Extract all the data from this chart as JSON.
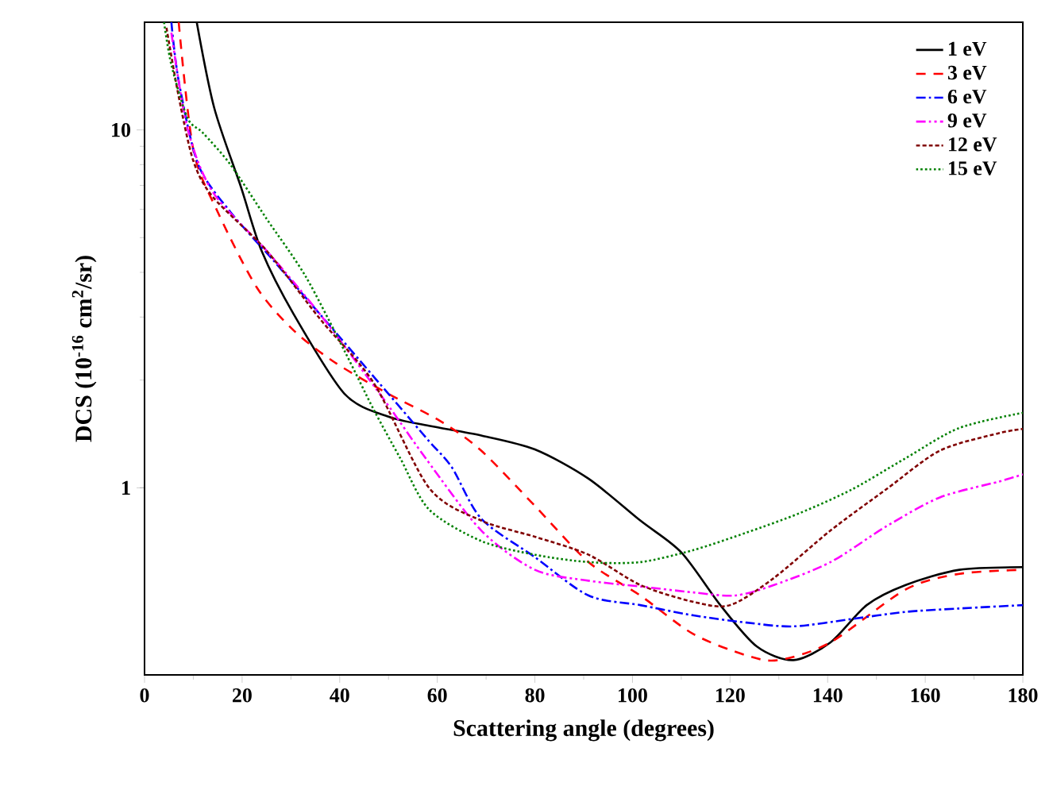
{
  "chart_data": {
    "type": "line",
    "xlabel": "Scattering angle (degrees)",
    "ylabel": "DCS (10$^{-16}$ cm$^{2}$/sr)",
    "xlim": [
      0,
      180
    ],
    "xticks": [
      0,
      20,
      40,
      60,
      80,
      100,
      120,
      140,
      160,
      180
    ],
    "ylim": [
      0.3,
      20
    ],
    "yticks": [
      1,
      10
    ],
    "log": "y",
    "grid": false,
    "legend": "top right",
    "series": [
      {
        "name": "1 eV",
        "color": "#000000",
        "line_style": "solid",
        "x": [
          10.7,
          14.3,
          19.8,
          24,
          30.6,
          41,
          50,
          58.3,
          69,
          80,
          91,
          101.6,
          110,
          118,
          125.5,
          133,
          140.6,
          148,
          156,
          167,
          180
        ],
        "values": [
          20,
          11.5,
          6.9,
          4.59,
          3.05,
          1.83,
          1.58,
          1.49,
          1.4,
          1.28,
          1.06,
          0.81,
          0.66,
          0.47,
          0.36,
          0.33,
          0.37,
          0.47,
          0.535,
          0.59,
          0.6
        ]
      },
      {
        "name": "3 eV",
        "color": "#ff0000",
        "line_style": "dashed",
        "x": [
          7,
          10,
          15,
          23,
          30.6,
          39,
          50,
          60.5,
          69,
          80,
          91,
          101.6,
          112.5,
          123.4,
          130,
          140.6,
          156,
          167,
          180
        ],
        "values": [
          20,
          8.8,
          5.9,
          3.63,
          2.75,
          2.24,
          1.83,
          1.54,
          1.27,
          0.89,
          0.62,
          0.5,
          0.39,
          0.34,
          0.33,
          0.37,
          0.52,
          0.575,
          0.59
        ]
      },
      {
        "name": "6 eV",
        "color": "#0000ff",
        "line_style": "dashdot",
        "x": [
          5.5,
          7,
          11,
          17.6,
          26.4,
          36,
          50,
          58.3,
          63,
          69,
          80,
          91,
          101.6,
          112.5,
          123.4,
          133,
          145,
          156,
          167,
          180
        ],
        "values": [
          20,
          13.7,
          8.0,
          5.9,
          4.32,
          3.05,
          1.83,
          1.35,
          1.14,
          0.82,
          0.64,
          0.5,
          0.47,
          0.44,
          0.42,
          0.41,
          0.43,
          0.45,
          0.46,
          0.47
        ]
      },
      {
        "name": "9 eV",
        "color": "#ff00ff",
        "line_style": "dashdotdot",
        "x": [
          5.5,
          8.8,
          14,
          25,
          36,
          49,
          57.6,
          69,
          80,
          91,
          101.6,
          112.5,
          121,
          129,
          140.6,
          152,
          163,
          175,
          180
        ],
        "values": [
          18.7,
          10.1,
          6.7,
          4.6,
          3.05,
          1.77,
          1.21,
          0.76,
          0.59,
          0.55,
          0.53,
          0.51,
          0.5,
          0.535,
          0.62,
          0.78,
          0.94,
          1.04,
          1.09
        ]
      },
      {
        "name": "12 eV",
        "color": "#800000",
        "line_style": "shortdashed",
        "x": [
          4.5,
          7,
          10,
          14,
          25,
          36,
          47,
          58.3,
          69,
          80,
          91,
          101.6,
          112.5,
          120,
          129,
          140.6,
          152,
          163,
          175,
          180
        ],
        "values": [
          19.3,
          12.4,
          8.2,
          6.5,
          4.6,
          2.96,
          1.96,
          1.0,
          0.81,
          0.73,
          0.65,
          0.535,
          0.48,
          0.47,
          0.56,
          0.76,
          0.99,
          1.27,
          1.42,
          1.46
        ]
      },
      {
        "name": "15 eV",
        "color": "#008000",
        "line_style": "dotted",
        "x": [
          4,
          5.5,
          8.8,
          12,
          17.6,
          25,
          33,
          41,
          47,
          52.4,
          58.3,
          69,
          80,
          91,
          101.6,
          112.5,
          123.4,
          134.3,
          145,
          156,
          167,
          180
        ],
        "values": [
          20,
          15.2,
          10.8,
          9.8,
          8.0,
          5.65,
          3.9,
          2.41,
          1.65,
          1.21,
          0.87,
          0.71,
          0.65,
          0.62,
          0.62,
          0.67,
          0.75,
          0.85,
          0.99,
          1.21,
          1.47,
          1.62
        ]
      }
    ]
  }
}
